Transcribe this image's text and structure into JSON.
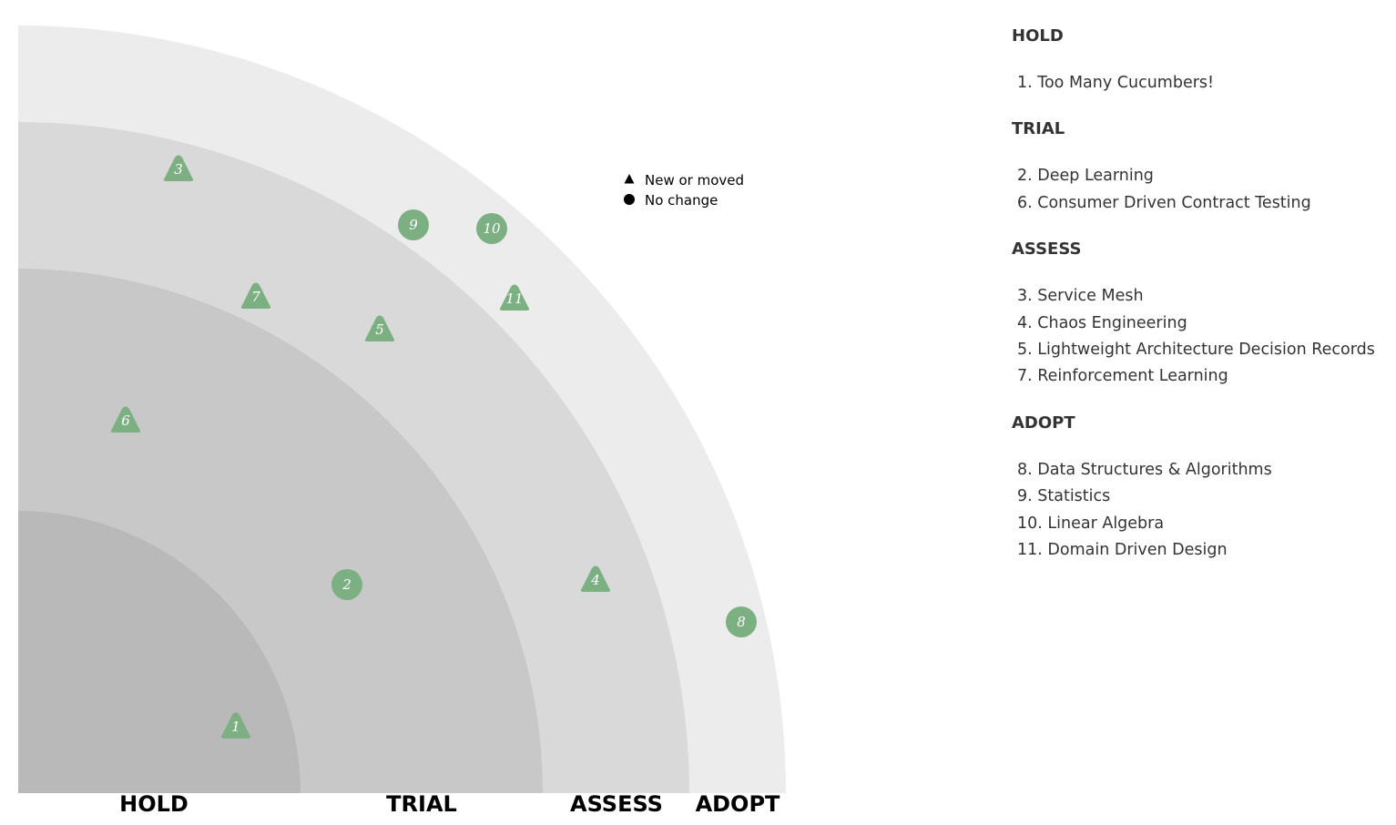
{
  "colors": {
    "ring_hold": "#b9b9b9",
    "ring_trial": "#c8c8c8",
    "ring_assess": "#d9d9d9",
    "ring_adopt": "#ececec",
    "blip": "#7cb083",
    "blip_text": "#ffffff",
    "legend_marker": "#000000"
  },
  "rings": [
    {
      "name": "HOLD",
      "label": "HOLD"
    },
    {
      "name": "TRIAL",
      "label": "TRIAL"
    },
    {
      "name": "ASSESS",
      "label": "ASSESS"
    },
    {
      "name": "ADOPT",
      "label": "ADOPT"
    }
  ],
  "legend": {
    "new_or_moved": {
      "icon": "triangle-icon",
      "label": "New or moved"
    },
    "no_change": {
      "icon": "circle-icon",
      "label": "No change"
    }
  },
  "blips": [
    {
      "number": "1",
      "ring": "HOLD",
      "shape": "triangle",
      "name": "Too Many Cucumbers!"
    },
    {
      "number": "2",
      "ring": "TRIAL",
      "shape": "circle",
      "name": "Deep Learning"
    },
    {
      "number": "3",
      "ring": "ASSESS",
      "shape": "triangle",
      "name": "Service Mesh"
    },
    {
      "number": "4",
      "ring": "ASSESS",
      "shape": "triangle",
      "name": "Chaos Engineering"
    },
    {
      "number": "5",
      "ring": "ASSESS",
      "shape": "triangle",
      "name": "Lightweight Architecture Decision Records"
    },
    {
      "number": "6",
      "ring": "TRIAL",
      "shape": "triangle",
      "name": "Consumer Driven Contract Testing"
    },
    {
      "number": "7",
      "ring": "ASSESS",
      "shape": "triangle",
      "name": "Reinforcement Learning"
    },
    {
      "number": "8",
      "ring": "ADOPT",
      "shape": "circle",
      "name": "Data Structures & Algorithms"
    },
    {
      "number": "9",
      "ring": "ADOPT",
      "shape": "circle",
      "name": "Statistics"
    },
    {
      "number": "10",
      "ring": "ADOPT",
      "shape": "circle",
      "name": "Linear Algebra"
    },
    {
      "number": "11",
      "ring": "ADOPT",
      "shape": "triangle",
      "name": "Domain Driven Design"
    }
  ],
  "sidebar": [
    {
      "title": "HOLD",
      "items": [
        "1. Too Many Cucumbers!"
      ]
    },
    {
      "title": "TRIAL",
      "items": [
        "2. Deep Learning",
        "6. Consumer Driven Contract Testing"
      ]
    },
    {
      "title": "ASSESS",
      "items": [
        "3. Service Mesh",
        "4. Chaos Engineering",
        "5. Lightweight Architecture Decision Records",
        "7. Reinforcement Learning"
      ]
    },
    {
      "title": "ADOPT",
      "items": [
        "8. Data Structures & Algorithms",
        "9. Statistics",
        "10. Linear Algebra",
        "11. Domain Driven Design"
      ]
    }
  ]
}
